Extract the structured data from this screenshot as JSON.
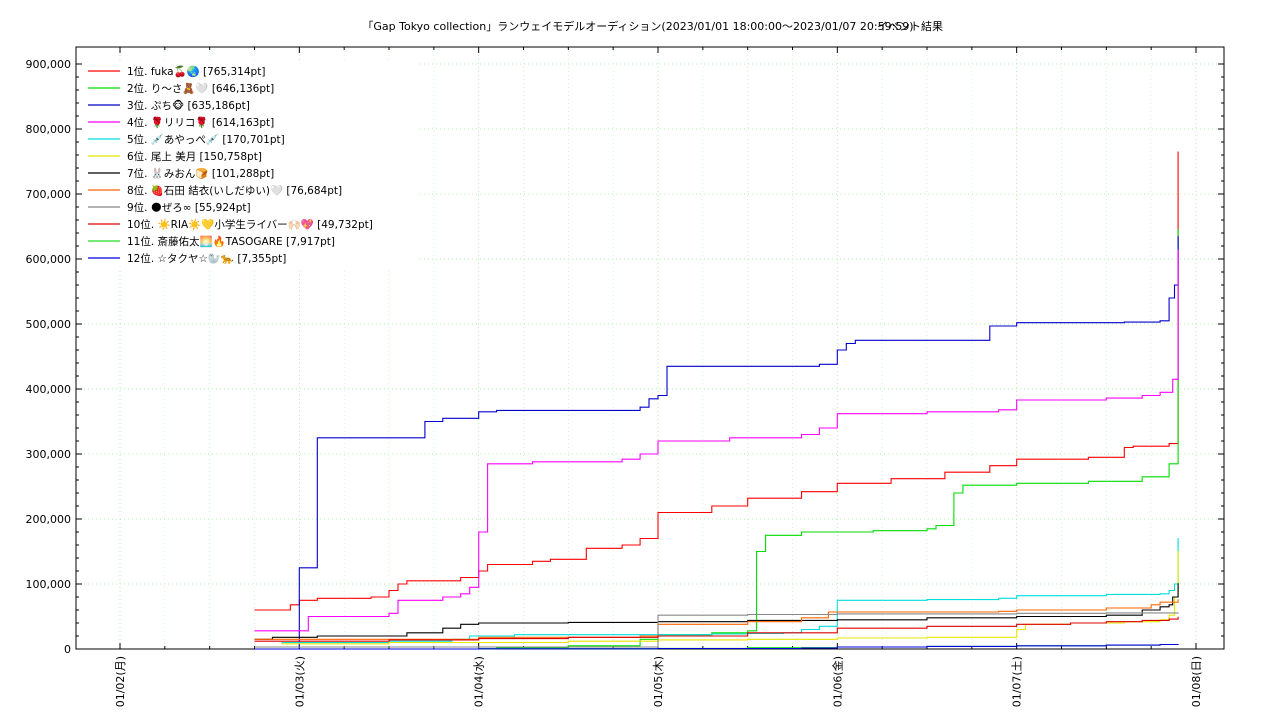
{
  "chart_data": {
    "type": "line",
    "title": "「Gap Tokyo collection」ランウェイモデルオーディション(2023/01/01 18:00:00〜2023/01/07 20:59:59)",
    "subtitle": "イベント結果",
    "x_ticks": [
      "01/02(月)",
      "01/03(火)",
      "01/04(水)",
      "01/05(木)",
      "01/06(金)",
      "01/07(土)",
      "01/08(日)"
    ],
    "xlim": [
      0,
      6
    ],
    "y_ticks": [
      "0",
      "100,000",
      "200,000",
      "300,000",
      "400,000",
      "500,000",
      "600,000",
      "700,000",
      "800,000",
      "900,000"
    ],
    "ylim": [
      0,
      900000
    ],
    "grid": true,
    "legend_placement": "top-left",
    "series": [
      {
        "name": "1位. fuka🍒🌏 [765,314pt]",
        "color": "#ff0000",
        "x": [
          0.75,
          0.9,
          0.95,
          1.0,
          1.1,
          1.4,
          1.5,
          1.55,
          1.6,
          1.9,
          2.0,
          2.05,
          2.3,
          2.4,
          2.6,
          2.8,
          2.9,
          3.0,
          3.3,
          3.5,
          3.8,
          4.0,
          4.3,
          4.6,
          4.85,
          5.0,
          5.4,
          5.6,
          5.65,
          5.85,
          5.9
        ],
        "y": [
          60000,
          60000,
          68000,
          75000,
          78000,
          80000,
          90000,
          100000,
          105000,
          110000,
          120000,
          130000,
          135000,
          138000,
          155000,
          160000,
          170000,
          210000,
          220000,
          232000,
          242000,
          255000,
          262000,
          272000,
          282000,
          292000,
          295000,
          310000,
          312000,
          316000,
          765314
        ]
      },
      {
        "name": "2位. り〜さ🧸🤍 [646,136pt]",
        "color": "#00dd00",
        "x": [
          1.9,
          2.1,
          2.5,
          2.9,
          3.0,
          3.3,
          3.5,
          3.55,
          3.6,
          3.8,
          4.2,
          4.5,
          4.55,
          4.65,
          4.7,
          5.0,
          5.4,
          5.7,
          5.85,
          5.9
        ],
        "y": [
          0,
          2000,
          5000,
          15000,
          22000,
          25000,
          28000,
          150000,
          175000,
          180000,
          182000,
          185000,
          190000,
          240000,
          252000,
          255000,
          258000,
          265000,
          285000,
          646136
        ]
      },
      {
        "name": "3位. ぷち🐵 [635,186pt]",
        "color": "#0000cc",
        "x": [
          0.95,
          1.0,
          1.05,
          1.1,
          1.15,
          1.2,
          1.65,
          1.7,
          1.8,
          1.9,
          2.0,
          2.1,
          2.4,
          2.8,
          2.9,
          2.95,
          3.0,
          3.05,
          3.3,
          3.6,
          3.9,
          4.0,
          4.05,
          4.1,
          4.4,
          4.8,
          4.85,
          5.0,
          5.2,
          5.6,
          5.8,
          5.85,
          5.88,
          5.9
        ],
        "y": [
          0,
          125000,
          125000,
          325000,
          325000,
          325000,
          325000,
          350000,
          355000,
          355000,
          365000,
          367000,
          367000,
          367000,
          372000,
          385000,
          390000,
          435000,
          435000,
          435000,
          438000,
          460000,
          470000,
          475000,
          475000,
          475000,
          497000,
          502000,
          502000,
          503000,
          505000,
          540000,
          560000,
          635186
        ]
      },
      {
        "name": "4位. 🌹リリコ🌹 [614,163pt]",
        "color": "#ff00ff",
        "x": [
          0.75,
          1.0,
          1.05,
          1.5,
          1.55,
          1.8,
          1.9,
          1.95,
          2.0,
          2.05,
          2.3,
          2.8,
          2.9,
          3.0,
          3.4,
          3.8,
          3.9,
          4.0,
          4.5,
          4.9,
          5.0,
          5.5,
          5.7,
          5.8,
          5.87,
          5.9
        ],
        "y": [
          28000,
          28000,
          50000,
          55000,
          75000,
          80000,
          85000,
          95000,
          180000,
          285000,
          288000,
          292000,
          300000,
          320000,
          325000,
          330000,
          340000,
          362000,
          365000,
          368000,
          383000,
          386000,
          390000,
          395000,
          415000,
          614163
        ]
      },
      {
        "name": "5位. 💉あやっぺ💉 [170,701pt]",
        "color": "#00dddd",
        "x": [
          0.9,
          1.5,
          1.85,
          1.95,
          2.2,
          2.9,
          3.3,
          3.5,
          3.7,
          3.8,
          3.9,
          4.0,
          4.5,
          4.9,
          5.0,
          5.5,
          5.8,
          5.85,
          5.88,
          5.9
        ],
        "y": [
          10000,
          12000,
          15000,
          20000,
          22000,
          22000,
          23000,
          24000,
          25000,
          30000,
          35000,
          75000,
          76000,
          78000,
          82000,
          84000,
          85000,
          90000,
          100000,
          170701
        ]
      },
      {
        "name": "6位. 尾上 美月 [150,758pt]",
        "color": "#e6e600",
        "x": [
          0.9,
          1.5,
          2.5,
          3.0,
          3.5,
          4.0,
          4.5,
          4.9,
          5.0,
          5.05,
          5.3,
          5.6,
          5.8,
          5.85,
          5.88,
          5.9
        ],
        "y": [
          8000,
          10000,
          12000,
          14000,
          15000,
          17000,
          18000,
          18000,
          30000,
          38000,
          40000,
          42000,
          45000,
          52000,
          80000,
          150758
        ]
      },
      {
        "name": "7位. 🐰みおん🍞 [101,288pt]",
        "color": "#000000",
        "x": [
          0.75,
          0.85,
          0.95,
          1.1,
          1.3,
          1.5,
          1.6,
          1.8,
          1.9,
          2.0,
          2.5,
          3.0,
          3.5,
          4.0,
          4.5,
          5.0,
          5.5,
          5.7,
          5.8,
          5.85,
          5.87,
          5.9
        ],
        "y": [
          15000,
          18000,
          18000,
          20000,
          20000,
          20000,
          25000,
          32000,
          38000,
          40000,
          41000,
          42000,
          44000,
          45000,
          48000,
          50000,
          52000,
          60000,
          65000,
          68000,
          80000,
          101288
        ]
      },
      {
        "name": "8位. 🍓石田 結衣(いしだゆい)🤍 [76,684pt]",
        "color": "#ff6600",
        "x": [
          0.75,
          1.5,
          1.9,
          2.0,
          2.5,
          2.9,
          3.0,
          3.5,
          3.8,
          3.95,
          4.5,
          4.9,
          5.0,
          5.5,
          5.75,
          5.8,
          5.9
        ],
        "y": [
          15000,
          15000,
          15000,
          18000,
          18000,
          20000,
          38000,
          42000,
          48000,
          57000,
          57000,
          58000,
          60000,
          63000,
          68000,
          72000,
          76684
        ]
      },
      {
        "name": "9位. 🌑ぜろ∞ [55,924pt]",
        "color": "#888888",
        "x": [
          0.75,
          2.95,
          3.0,
          3.5,
          4.0,
          4.5,
          5.0,
          5.5,
          5.9
        ],
        "y": [
          3000,
          3000,
          52000,
          53000,
          54000,
          54000,
          55000,
          55500,
          55924
        ]
      },
      {
        "name": "10位. ☀️RIA☀️💛小学生ライバー🙌🏻💖 [49,732pt]",
        "color": "#dd0000",
        "x": [
          0.75,
          1.5,
          2.0,
          2.5,
          3.0,
          3.5,
          4.0,
          4.5,
          5.0,
          5.3,
          5.5,
          5.7,
          5.85,
          5.9
        ],
        "y": [
          12000,
          14000,
          16000,
          18000,
          20000,
          25000,
          32000,
          35000,
          38000,
          40000,
          42000,
          44000,
          46000,
          49732
        ]
      },
      {
        "name": "11位. 斎藤佑太🌅🔥TASOGARE [7,917pt]",
        "color": "#22dd22",
        "x": [
          0.75,
          2.0,
          3.0,
          3.5,
          4.0,
          4.5,
          5.0,
          5.5,
          5.8,
          5.9
        ],
        "y": [
          0,
          500,
          1000,
          2000,
          3000,
          4000,
          5000,
          6000,
          7000,
          7917
        ]
      },
      {
        "name": "12位. ☆タクヤ☆🦭🐆 [7,355pt]",
        "color": "#0000dd",
        "x": [
          0.75,
          2.0,
          3.0,
          3.8,
          4.0,
          4.5,
          5.0,
          5.5,
          5.8,
          5.9
        ],
        "y": [
          0,
          300,
          800,
          1500,
          3000,
          4000,
          5000,
          6000,
          7000,
          7355
        ]
      }
    ]
  }
}
